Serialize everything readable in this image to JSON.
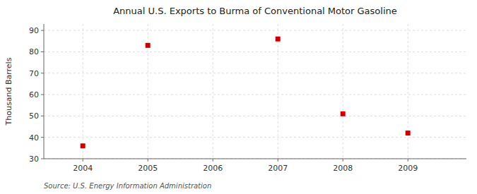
{
  "chart_data": {
    "type": "scatter",
    "title": "Annual U.S. Exports to Burma of Conventional Motor Gasoline",
    "y_label": "Thousand Barrels",
    "source": "Source: U.S. Energy Information Administration",
    "x": [
      2004,
      2005,
      2006,
      2007,
      2008,
      2009
    ],
    "values": [
      36,
      83,
      null,
      86,
      51,
      42
    ],
    "color": "#cc0000",
    "marker": "square",
    "xlim": [
      2003.4,
      2009.9
    ],
    "ylim": [
      30,
      93
    ],
    "xticks": [
      2004,
      2005,
      2006,
      2007,
      2008,
      2009
    ],
    "yticks": [
      30,
      40,
      50,
      60,
      70,
      80,
      90
    ],
    "grid": true
  }
}
